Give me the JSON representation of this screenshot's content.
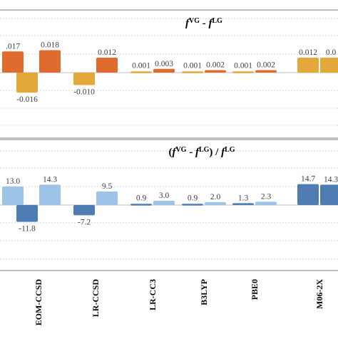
{
  "chart_data": [
    {
      "type": "bar",
      "title": "fVG - fLG",
      "title_parts": {
        "f1": "f",
        "s1": "VG",
        "minus": " - ",
        "f2": "f",
        "s2": "LG"
      },
      "categories": [
        "",
        "EOM-CCSD",
        "LR-CCSD",
        "LR-CC3",
        "B3LYP",
        "PBE0",
        "M06-2X",
        ""
      ],
      "series": [
        {
          "values": [
            null,
            -0.016,
            -0.01,
            0.001,
            0.001,
            0.001,
            0.012,
            null
          ],
          "color": "#E2A93A"
        },
        {
          "values": [
            0.017,
            0.018,
            0.012,
            0.003,
            0.002,
            0.002,
            0.012,
            null
          ],
          "color": "#E06B2F"
        }
      ],
      "data_labels": [
        {
          "cat": 0,
          "series": 1,
          "text": ".017"
        },
        {
          "cat": 1,
          "series": 0,
          "text": "-0.016"
        },
        {
          "cat": 1,
          "series": 1,
          "text": "0.018"
        },
        {
          "cat": 2,
          "series": 0,
          "text": "-0.010"
        },
        {
          "cat": 2,
          "series": 1,
          "text": "0.012"
        },
        {
          "cat": 3,
          "series": 0,
          "text": "0.001"
        },
        {
          "cat": 3,
          "series": 1,
          "text": "0.003"
        },
        {
          "cat": 4,
          "series": 0,
          "text": "0.001"
        },
        {
          "cat": 4,
          "series": 1,
          "text": "0.002"
        },
        {
          "cat": 5,
          "series": 0,
          "text": "0.001"
        },
        {
          "cat": 5,
          "series": 1,
          "text": "0.002"
        },
        {
          "cat": 6,
          "series": 0,
          "text": "0.012"
        },
        {
          "cat": 7,
          "series": 0,
          "text": "0.0"
        }
      ],
      "extra_bars": [
        {
          "cat": 7,
          "series": 0,
          "value": 0.012,
          "color": "#E2A93A"
        }
      ],
      "ylim": [
        -0.025,
        0.025
      ],
      "grid": true
    },
    {
      "type": "bar",
      "title": "(fVG - fLG) / fLG",
      "title_parts": {
        "open": "(",
        "f1": "f",
        "s1": "VG",
        "minus": " - ",
        "f2": "f",
        "s2": "LG",
        "close": ")",
        "div": " / ",
        "f3": "f",
        "s3": "LG"
      },
      "categories": [
        "",
        "EOM-CCSD",
        "LR-CCSD",
        "LR-CC3",
        "B3LYP",
        "PBE0",
        "M06-2X",
        ""
      ],
      "series": [
        {
          "values": [
            null,
            -11.8,
            -7.2,
            0.9,
            0.9,
            1.3,
            14.7,
            14.3
          ],
          "color": "#4F7CB3"
        },
        {
          "values": [
            13.0,
            14.3,
            9.5,
            3.0,
            2.0,
            2.3,
            null,
            null
          ],
          "color": "#9DC3E6"
        }
      ],
      "data_labels": [
        {
          "cat": 0,
          "series": 1,
          "text": "13.0"
        },
        {
          "cat": 1,
          "series": 0,
          "text": "-11.8"
        },
        {
          "cat": 1,
          "series": 1,
          "text": "14.3"
        },
        {
          "cat": 2,
          "series": 0,
          "text": "-7.2"
        },
        {
          "cat": 2,
          "series": 1,
          "text": "9.5"
        },
        {
          "cat": 3,
          "series": 0,
          "text": "0.9"
        },
        {
          "cat": 3,
          "series": 1,
          "text": "3.0"
        },
        {
          "cat": 4,
          "series": 0,
          "text": "0.9"
        },
        {
          "cat": 4,
          "series": 1,
          "text": "2.0"
        },
        {
          "cat": 5,
          "series": 0,
          "text": "1.3"
        },
        {
          "cat": 5,
          "series": 1,
          "text": "2.3"
        },
        {
          "cat": 6,
          "series": 0,
          "text": "14.7"
        },
        {
          "cat": 7,
          "series": 0,
          "text": "14.3"
        }
      ],
      "ylim": [
        -20,
        20
      ],
      "grid": true
    }
  ],
  "x_tick_labels": [
    "EOM-CCSD",
    "LR-CCSD",
    "LR-CC3",
    "B3LYP",
    "PBE0",
    "M06-2X"
  ]
}
